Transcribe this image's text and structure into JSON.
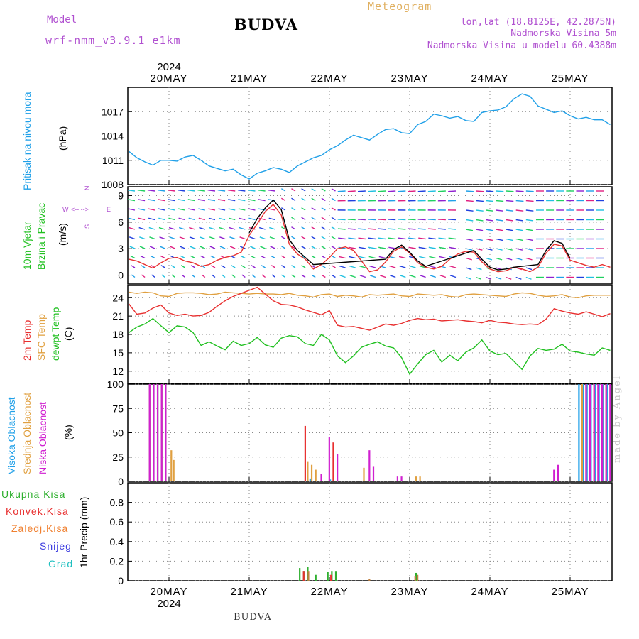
{
  "header": {
    "station": "BUDVA",
    "model_label": "Model",
    "model_name": "wrf-nmm_v3.9.1 e1km",
    "meteogram_label": "Meteogram",
    "lonlat": "lon,lat (18.8125E, 42.2875N)",
    "altitude": "Nadmorska Visina 5m",
    "model_altitude": "Nadmorska Visina u modelu 60.4388m"
  },
  "footer": {
    "station": "BUDVA",
    "watermark": "made by Angel"
  },
  "chart_data": [
    {
      "type": "line",
      "panel": "pressure",
      "ylabel": "Pritisak na nivou mora",
      "unit_label": "(hPa)",
      "ylim": [
        1008,
        1020
      ],
      "yticks": [
        1008,
        1011,
        1014,
        1017
      ],
      "grid": true,
      "x_categories": [
        "20MAY",
        "21MAY",
        "22MAY",
        "23MAY",
        "24MAY",
        "25MAY"
      ],
      "year_label": "2024",
      "series": [
        {
          "color": "#20a0e8",
          "x": [
            -0.5,
            -0.4,
            -0.3,
            -0.2,
            -0.1,
            0.0,
            0.1,
            0.2,
            0.3,
            0.4,
            0.5,
            0.6,
            0.7,
            0.8,
            0.9,
            1.0,
            1.1,
            1.2,
            1.3,
            1.4,
            1.5,
            1.6,
            1.7,
            1.8,
            1.9,
            2.0,
            2.1,
            2.2,
            2.3,
            2.4,
            2.5,
            2.6,
            2.7,
            2.8,
            2.9,
            3.0,
            3.1,
            3.2,
            3.3,
            3.4,
            3.5,
            3.6,
            3.7,
            3.8,
            3.9,
            4.0,
            4.1,
            4.2,
            4.3,
            4.4,
            4.5,
            4.6,
            4.7,
            4.8,
            4.9,
            5.0,
            5.1,
            5.2,
            5.3,
            5.4,
            5.5
          ],
          "y": [
            1012.1,
            1011.3,
            1010.8,
            1010.4,
            1011.0,
            1011.0,
            1010.9,
            1011.4,
            1011.6,
            1011.0,
            1010.3,
            1010.0,
            1009.7,
            1009.9,
            1009.2,
            1008.7,
            1009.4,
            1009.7,
            1010.1,
            1009.9,
            1009.5,
            1010.3,
            1010.8,
            1011.3,
            1011.6,
            1012.3,
            1012.8,
            1013.5,
            1014.1,
            1013.8,
            1013.5,
            1014.2,
            1014.8,
            1014.9,
            1014.4,
            1014.3,
            1015.4,
            1015.8,
            1016.7,
            1016.5,
            1016.2,
            1016.4,
            1015.9,
            1015.8,
            1016.9,
            1017.1,
            1017.2,
            1017.6,
            1018.6,
            1019.2,
            1018.9,
            1017.7,
            1017.3,
            1016.9,
            1017.1,
            1016.5,
            1016.1,
            1016.3,
            1016.0,
            1016.0,
            1015.4
          ]
        }
      ]
    },
    {
      "type": "line",
      "panel": "wind",
      "ylabel": "10m Vjetar",
      "ylabel2": "Brzina i Pravac",
      "unit_label": "(m/s)",
      "direction_key": {
        "n": "N",
        "s": "S",
        "e": "E",
        "w": "W"
      },
      "ylim": [
        -1,
        10
      ],
      "yticks": [
        0,
        3,
        6,
        9
      ],
      "grid": true,
      "series": [
        {
          "name": "speed",
          "color": "#e83030",
          "x": [
            -0.5,
            -0.4,
            -0.3,
            -0.2,
            -0.1,
            0.0,
            0.1,
            0.2,
            0.3,
            0.4,
            0.5,
            0.6,
            0.7,
            0.8,
            0.9,
            1.0,
            1.1,
            1.2,
            1.3,
            1.4,
            1.5,
            1.6,
            1.7,
            1.8,
            1.9,
            2.0,
            2.1,
            2.2,
            2.3,
            2.4,
            2.5,
            2.6,
            2.7,
            2.8,
            2.9,
            3.0,
            3.1,
            3.2,
            3.3,
            3.4,
            3.5,
            3.6,
            3.7,
            3.8,
            3.9,
            4.0,
            4.1,
            4.2,
            4.3,
            4.4,
            4.5,
            4.6,
            4.7,
            4.8,
            4.9,
            5.0,
            5.1,
            5.2,
            5.3,
            5.4,
            5.5
          ],
          "y": [
            1.8,
            1.6,
            1.2,
            0.8,
            1.4,
            1.9,
            2.0,
            1.6,
            1.4,
            1.0,
            1.2,
            1.7,
            2.0,
            2.2,
            2.6,
            4.5,
            5.8,
            7.2,
            8.0,
            6.8,
            3.5,
            2.4,
            1.8,
            0.7,
            1.2,
            2.0,
            3.0,
            3.2,
            2.8,
            1.6,
            0.4,
            0.6,
            1.5,
            2.7,
            3.2,
            2.5,
            1.4,
            0.9,
            0.7,
            1.0,
            1.8,
            2.4,
            2.7,
            2.6,
            1.5,
            0.7,
            0.4,
            0.5,
            0.9,
            0.7,
            0.4,
            0.9,
            2.5,
            3.5,
            3.3,
            1.7,
            1.4,
            1.1,
            0.9,
            1.2,
            0.9
          ]
        },
        {
          "name": "gust",
          "color": "#000000",
          "x": [
            1.0,
            1.1,
            1.2,
            1.3,
            1.4,
            1.5,
            1.6,
            1.7,
            1.8,
            2.7,
            2.8,
            2.9,
            3.0,
            3.1,
            3.2,
            3.8,
            3.9,
            4.0,
            4.1,
            4.2,
            4.3,
            4.6,
            4.7,
            4.8,
            4.9,
            5.0
          ],
          "y": [
            4.8,
            6.4,
            7.6,
            8.5,
            7.4,
            4.0,
            2.8,
            2.0,
            1.2,
            1.8,
            2.9,
            3.4,
            2.6,
            1.6,
            1.0,
            2.8,
            1.8,
            0.9,
            0.6,
            0.7,
            0.9,
            1.2,
            2.8,
            3.9,
            3.6,
            1.9
          ]
        }
      ]
    },
    {
      "type": "line",
      "panel": "temperature",
      "ylabels": [
        "2m Temp",
        "SFC Temp",
        "dewpt Temp"
      ],
      "unit_label": "(C)",
      "ylim": [
        10,
        26
      ],
      "yticks": [
        12,
        15,
        18,
        21,
        24
      ],
      "grid": true,
      "series": [
        {
          "name": "SFC Temp",
          "color": "#e0a040",
          "x": [
            -0.5,
            -0.4,
            -0.3,
            -0.2,
            -0.1,
            0.0,
            0.1,
            0.2,
            0.3,
            0.4,
            0.5,
            0.6,
            0.7,
            0.8,
            0.9,
            1.0,
            1.1,
            1.2,
            1.3,
            1.4,
            1.5,
            1.6,
            1.7,
            1.8,
            1.9,
            2.0,
            2.1,
            2.2,
            2.3,
            2.4,
            2.5,
            2.6,
            2.7,
            2.8,
            2.9,
            3.0,
            3.1,
            3.2,
            3.3,
            3.4,
            3.5,
            3.6,
            3.7,
            3.8,
            3.9,
            4.0,
            4.1,
            4.2,
            4.3,
            4.4,
            4.5,
            4.6,
            4.7,
            4.8,
            4.9,
            5.0,
            5.1,
            5.2,
            5.3,
            5.4,
            5.5
          ],
          "y": [
            24.9,
            24.7,
            24.9,
            24.8,
            24.3,
            24.2,
            24.7,
            24.8,
            24.8,
            24.7,
            24.5,
            24.6,
            24.9,
            24.8,
            24.7,
            24.6,
            24.7,
            24.6,
            24.6,
            24.5,
            24.7,
            24.4,
            24.3,
            24.1,
            24.5,
            24.6,
            24.2,
            24.4,
            24.3,
            24.1,
            24.5,
            24.4,
            24.5,
            24.6,
            24.3,
            24.2,
            24.6,
            24.5,
            24.4,
            24.5,
            24.2,
            24.1,
            24.5,
            24.6,
            24.5,
            24.4,
            24.3,
            24.2,
            24.6,
            24.8,
            24.7,
            24.4,
            24.2,
            24.3,
            24.5,
            24.1,
            24.0,
            24.3,
            24.4,
            24.4,
            24.4
          ]
        },
        {
          "name": "2m Temp",
          "color": "#e83030",
          "x": [
            -0.5,
            -0.4,
            -0.3,
            -0.2,
            -0.1,
            0.0,
            0.1,
            0.2,
            0.3,
            0.4,
            0.5,
            0.6,
            0.7,
            0.8,
            0.9,
            1.0,
            1.1,
            1.2,
            1.3,
            1.4,
            1.5,
            1.6,
            1.7,
            1.8,
            1.9,
            2.0,
            2.1,
            2.2,
            2.3,
            2.4,
            2.5,
            2.6,
            2.7,
            2.8,
            2.9,
            3.0,
            3.1,
            3.2,
            3.3,
            3.4,
            3.5,
            3.6,
            3.7,
            3.8,
            3.9,
            4.0,
            4.1,
            4.2,
            4.3,
            4.4,
            4.5,
            4.6,
            4.7,
            4.8,
            4.9,
            5.0,
            5.1,
            5.2,
            5.3,
            5.4,
            5.5
          ],
          "y": [
            23.0,
            21.3,
            21.5,
            22.3,
            22.8,
            21.5,
            21.1,
            21.3,
            21.0,
            21.1,
            21.6,
            22.6,
            23.5,
            24.2,
            24.7,
            25.2,
            25.7,
            24.6,
            23.5,
            22.9,
            22.8,
            22.5,
            22.0,
            21.6,
            21.2,
            21.9,
            19.5,
            19.2,
            19.3,
            19.0,
            18.7,
            19.2,
            19.7,
            19.5,
            19.8,
            20.3,
            20.6,
            20.4,
            20.5,
            20.2,
            20.3,
            20.4,
            20.2,
            20.1,
            19.9,
            20.3,
            20.0,
            19.9,
            19.7,
            19.6,
            19.7,
            19.6,
            20.5,
            22.2,
            21.8,
            21.5,
            21.3,
            21.7,
            21.3,
            20.9,
            21.4
          ]
        },
        {
          "name": "dewpt Temp",
          "color": "#20c020",
          "x": [
            -0.5,
            -0.4,
            -0.3,
            -0.2,
            -0.1,
            0.0,
            0.1,
            0.2,
            0.3,
            0.4,
            0.5,
            0.6,
            0.7,
            0.8,
            0.9,
            1.0,
            1.1,
            1.2,
            1.3,
            1.4,
            1.5,
            1.6,
            1.7,
            1.8,
            1.9,
            2.0,
            2.1,
            2.2,
            2.3,
            2.4,
            2.5,
            2.6,
            2.7,
            2.8,
            2.9,
            3.0,
            3.1,
            3.2,
            3.3,
            3.4,
            3.5,
            3.6,
            3.7,
            3.8,
            3.9,
            4.0,
            4.1,
            4.2,
            4.3,
            4.4,
            4.5,
            4.6,
            4.7,
            4.8,
            4.9,
            5.0,
            5.1,
            5.2,
            5.3,
            5.4,
            5.5
          ],
          "y": [
            18.3,
            19.2,
            19.7,
            20.6,
            19.4,
            18.3,
            19.4,
            19.2,
            18.3,
            16.2,
            16.8,
            16.1,
            15.5,
            16.9,
            16.2,
            16.5,
            17.5,
            16.3,
            15.9,
            17.4,
            17.8,
            17.6,
            16.5,
            16.2,
            18.0,
            17.1,
            14.5,
            13.4,
            14.5,
            15.9,
            16.4,
            16.8,
            16.1,
            15.8,
            14.2,
            11.5,
            13.2,
            14.7,
            15.4,
            13.5,
            14.6,
            13.7,
            15.1,
            15.8,
            17.1,
            15.3,
            14.7,
            14.9,
            13.6,
            12.3,
            14.5,
            15.7,
            15.4,
            15.6,
            16.4,
            15.3,
            15.1,
            14.8,
            14.6,
            15.8,
            15.4
          ]
        }
      ]
    },
    {
      "type": "bar",
      "panel": "cloud",
      "ylabels": [
        "Visoka Oblacnost",
        "Srednja Oblacnost",
        "Niska Oblacnost"
      ],
      "unit_label": "(%)",
      "ylim": [
        0,
        100
      ],
      "yticks": [
        0,
        25,
        50,
        75,
        100
      ],
      "grid": true,
      "series": [
        {
          "name": "Visoka Oblacnost",
          "color": "#20a0e8",
          "x": [
            -0.25,
            -0.2,
            -0.15,
            -0.1,
            -0.05,
            1.75,
            2.0,
            5.1,
            5.15,
            5.2,
            5.25,
            5.3,
            5.35,
            5.4,
            5.45
          ],
          "y": [
            100,
            100,
            100,
            100,
            100,
            3,
            2,
            100,
            100,
            100,
            100,
            100,
            100,
            100,
            100
          ]
        },
        {
          "name": "Srednja Oblacnost",
          "color": "#e0a040",
          "x": [
            -0.27,
            -0.22,
            -0.17,
            -0.12,
            -0.07,
            0.0,
            0.03,
            1.7,
            1.75,
            1.8,
            2.4,
            3.05,
            3.1,
            5.12,
            5.17,
            5.22,
            5.27,
            5.32,
            5.37,
            5.42,
            5.47
          ],
          "y": [
            100,
            100,
            100,
            100,
            100,
            32,
            22,
            20,
            17,
            12,
            14,
            5,
            5,
            100,
            100,
            100,
            100,
            100,
            100,
            100,
            100
          ]
        },
        {
          "name": "Niska Oblacnost",
          "color": "#d020d0",
          "x": [
            -0.29,
            -0.24,
            -0.19,
            -0.14,
            -0.09,
            1.85,
            1.95,
            2.05,
            2.45,
            2.5,
            2.8,
            2.85,
            4.75,
            4.8,
            5.15,
            5.2,
            5.25,
            5.3,
            5.35,
            5.4,
            5.45
          ],
          "y": [
            100,
            100,
            100,
            100,
            100,
            8,
            46,
            28,
            32,
            15,
            5,
            5,
            12,
            17,
            100,
            100,
            100,
            100,
            100,
            100,
            100
          ]
        },
        {
          "name": "Konvek",
          "color": "#e83030",
          "x": [
            1.63,
            1.98
          ],
          "y": [
            57,
            40
          ]
        }
      ]
    },
    {
      "type": "bar",
      "panel": "precipitation",
      "ylabels": [
        "Ukupna Kisa",
        "Konvek.Kisa",
        "Zaledj.Kisa",
        "Snijeg",
        "Grad"
      ],
      "unit_label": "1hr Precip (mm)",
      "ylim": [
        0,
        1.0
      ],
      "yticks": [
        0,
        0.2,
        0.4,
        0.6,
        0.8
      ],
      "grid": true,
      "series": [
        {
          "name": "Ukupna Kisa",
          "color": "#30b030",
          "x": [
            1.62,
            1.67,
            1.72,
            1.82,
            1.97,
            2.02,
            2.07,
            3.07
          ],
          "y": [
            0.13,
            0.1,
            0.14,
            0.06,
            0.09,
            0.1,
            0.1,
            0.08
          ]
        },
        {
          "name": "Konvek.Kisa",
          "color": "#e83030",
          "x": [
            1.65,
            1.99
          ],
          "y": [
            0.1,
            0.06
          ]
        },
        {
          "name": "Zaledj.Kisa",
          "color": "#c08040",
          "x": [
            1.69,
            2.45,
            3.02,
            3.05
          ],
          "y": [
            0.1,
            0.02,
            0.05,
            0.06
          ]
        }
      ]
    }
  ],
  "colors": {
    "ylabel_pressure": "#20a0e8",
    "ylabel_wind1": "#20c020",
    "ylabel_wind2": "#20c020",
    "ylabel_2m": "#e83030",
    "ylabel_sfc": "#e0a040",
    "ylabel_dew": "#20c020",
    "ylabel_vis": "#20a0e8",
    "ylabel_sred": "#e0a040",
    "ylabel_nisk": "#d020d0",
    "precip_ukupna": "#30b030",
    "precip_konvek": "#e83030",
    "precip_zaledj": "#f08030",
    "precip_snijeg": "#4040e0",
    "precip_grad": "#20c0c0"
  }
}
